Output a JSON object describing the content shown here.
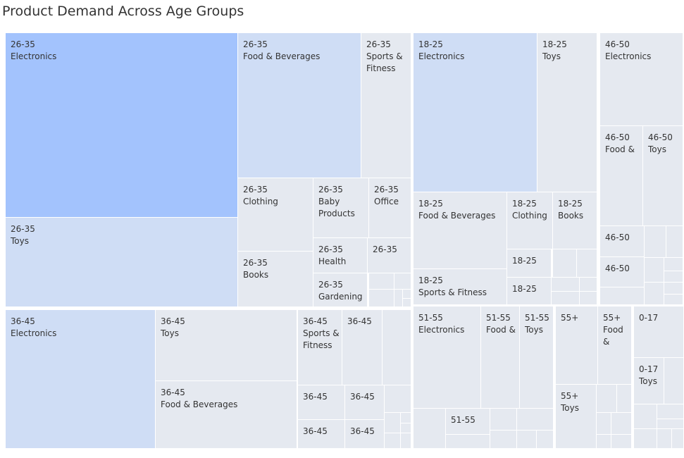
{
  "chart_data": {
    "type": "treemap",
    "title": "Product Demand Across Age Groups",
    "colors": {
      "dark": "#a3c3fd",
      "mid": "#cfddf5",
      "light": "#e5e9f0",
      "gap": "#ffffff"
    },
    "groups": [
      {
        "name": "26-35",
        "tiles": [
          {
            "age": "26-35",
            "category": "Electronics",
            "shade": "dark"
          },
          {
            "age": "26-35",
            "category": "Toys",
            "shade": "mid"
          },
          {
            "age": "26-35",
            "category": "Food & Beverages",
            "shade": "mid"
          },
          {
            "age": "26-35",
            "category": "Sports & Fitness",
            "shade": "light"
          },
          {
            "age": "26-35",
            "category": "Clothing",
            "shade": "light"
          },
          {
            "age": "26-35",
            "category": "Baby Products",
            "shade": "light"
          },
          {
            "age": "26-35",
            "category": "Office",
            "shade": "light"
          },
          {
            "age": "26-35",
            "category": "Books",
            "shade": "light"
          },
          {
            "age": "26-35",
            "category": "Health",
            "shade": "light"
          },
          {
            "age": "26-35",
            "category": "",
            "shade": "light"
          },
          {
            "age": "26-35",
            "category": "Gardening",
            "shade": "light"
          }
        ]
      },
      {
        "name": "18-25",
        "tiles": [
          {
            "age": "18-25",
            "category": "Electronics",
            "shade": "mid"
          },
          {
            "age": "18-25",
            "category": "Toys",
            "shade": "light"
          },
          {
            "age": "18-25",
            "category": "Food & Beverages",
            "shade": "light"
          },
          {
            "age": "18-25",
            "category": "Clothing",
            "shade": "light"
          },
          {
            "age": "18-25",
            "category": "Books",
            "shade": "light"
          },
          {
            "age": "18-25",
            "category": "Sports & Fitness",
            "shade": "light"
          },
          {
            "age": "18-25",
            "category": "",
            "shade": "light"
          },
          {
            "age": "18-25",
            "category": "",
            "shade": "light"
          }
        ]
      },
      {
        "name": "46-50",
        "tiles": [
          {
            "age": "46-50",
            "category": "Electronics",
            "shade": "light"
          },
          {
            "age": "46-50",
            "category": "Food &",
            "shade": "light"
          },
          {
            "age": "46-50",
            "category": "Toys",
            "shade": "light"
          },
          {
            "age": "46-50",
            "category": "",
            "shade": "light"
          },
          {
            "age": "46-50",
            "category": "",
            "shade": "light"
          }
        ]
      },
      {
        "name": "36-45",
        "tiles": [
          {
            "age": "36-45",
            "category": "Electronics",
            "shade": "mid"
          },
          {
            "age": "36-45",
            "category": "Toys",
            "shade": "light"
          },
          {
            "age": "36-45",
            "category": "Food & Beverages",
            "shade": "light"
          },
          {
            "age": "36-45",
            "category": "Sports & Fitness",
            "shade": "light"
          },
          {
            "age": "36-45",
            "category": "",
            "shade": "light"
          },
          {
            "age": "36-45",
            "category": "",
            "shade": "light"
          },
          {
            "age": "36-45",
            "category": "",
            "shade": "light"
          },
          {
            "age": "36-45",
            "category": "",
            "shade": "light"
          },
          {
            "age": "36-45",
            "category": "",
            "shade": "light"
          }
        ]
      },
      {
        "name": "51-55",
        "tiles": [
          {
            "age": "51-55",
            "category": "Electronics",
            "shade": "light"
          },
          {
            "age": "51-55",
            "category": "Food &",
            "shade": "light"
          },
          {
            "age": "51-55",
            "category": "Toys",
            "shade": "light"
          },
          {
            "age": "51-55",
            "category": "",
            "shade": "light"
          }
        ]
      },
      {
        "name": "55+",
        "tiles": [
          {
            "age": "55+",
            "category": "",
            "shade": "light"
          },
          {
            "age": "55+",
            "category": "Food &",
            "shade": "light"
          },
          {
            "age": "55+",
            "category": "Toys",
            "shade": "light"
          }
        ]
      },
      {
        "name": "0-17",
        "tiles": [
          {
            "age": "0-17",
            "category": "",
            "shade": "light"
          },
          {
            "age": "0-17",
            "category": "Toys",
            "shade": "light"
          }
        ]
      }
    ]
  }
}
